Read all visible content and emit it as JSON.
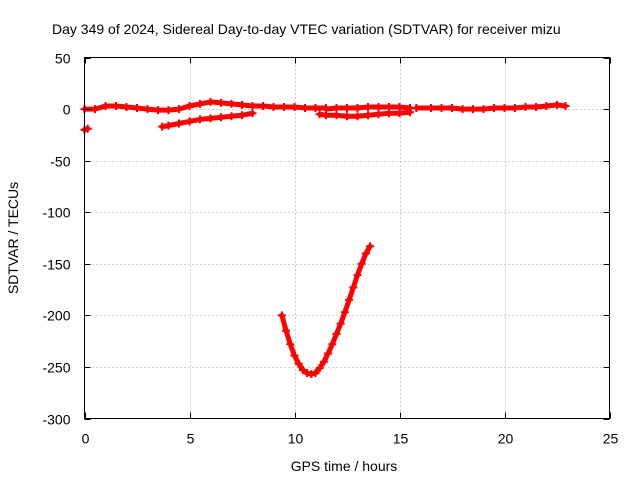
{
  "chart_data": {
    "type": "scatter",
    "title": "Day 349 of 2024, Sidereal Day-to-day VTEC variation (SDTVAR) for receiver mizu",
    "xlabel": "GPS time / hours",
    "ylabel": "SDTVAR / TECUs",
    "xlim": [
      0,
      25
    ],
    "ylim": [
      -300,
      50
    ],
    "xticks": [
      0,
      5,
      10,
      15,
      20,
      25
    ],
    "yticks": [
      50,
      0,
      -50,
      -100,
      -150,
      -200,
      -250,
      -300
    ],
    "grid": true,
    "marker": "plus",
    "color": "#ff0000",
    "series": [
      {
        "name": "arc-0",
        "x": [
          0.0,
          0.15
        ],
        "y": [
          -20,
          -19
        ]
      },
      {
        "name": "arc-1",
        "x": [
          0.0,
          0.5,
          1.0,
          1.5,
          2.0,
          2.5,
          3.0,
          3.5,
          4.0,
          4.5,
          5.0,
          5.5,
          6.0,
          6.5,
          7.0,
          7.5,
          8.0,
          8.5,
          9.0,
          9.5,
          10.0,
          10.5,
          11.0,
          11.5
        ],
        "y": [
          0,
          0,
          3,
          3,
          2,
          1,
          0,
          -1,
          -1,
          0,
          3,
          5,
          7,
          6,
          5,
          4,
          3,
          3,
          2,
          2,
          2,
          1,
          1,
          1
        ]
      },
      {
        "name": "arc-2",
        "x": [
          3.7,
          4.0,
          4.5,
          5.0,
          5.5,
          6.0,
          6.5,
          7.0,
          7.5,
          8.0
        ],
        "y": [
          -17,
          -16,
          -14,
          -12,
          -10,
          -9,
          -8,
          -7,
          -6,
          -4
        ]
      },
      {
        "name": "arc-3",
        "x": [
          11.2,
          11.5,
          12.0,
          12.5,
          13.0,
          13.5,
          14.0,
          14.5,
          15.0,
          15.5
        ],
        "y": [
          -5,
          -6,
          -6,
          -7,
          -7,
          -6,
          -5,
          -4,
          -4,
          -3
        ]
      },
      {
        "name": "arc-4",
        "x": [
          11.5,
          12.0,
          12.5,
          13.0,
          13.5,
          14.0,
          14.5,
          15.0,
          15.5
        ],
        "y": [
          0,
          1,
          1,
          1,
          2,
          2,
          2,
          2,
          1
        ]
      },
      {
        "name": "arc-5",
        "x": [
          15.8,
          16.5,
          17.0,
          17.5,
          18.0,
          18.5,
          19.0,
          19.5,
          20.0,
          20.5,
          21.0,
          21.5,
          22.0,
          22.5,
          22.9
        ],
        "y": [
          1,
          1,
          1,
          1,
          0,
          0,
          0,
          1,
          1,
          1,
          2,
          2,
          3,
          4,
          3
        ]
      },
      {
        "name": "arc-6",
        "x": [
          9.4,
          9.6,
          9.8,
          10.0,
          10.2,
          10.4,
          10.6,
          10.8,
          11.0,
          11.2,
          11.4,
          11.6,
          11.8,
          12.0,
          12.2,
          12.4,
          12.6,
          12.8,
          13.0,
          13.2,
          13.4,
          13.6
        ],
        "y": [
          -200,
          -215,
          -228,
          -239,
          -247,
          -253,
          -256,
          -257,
          -256,
          -251,
          -245,
          -237,
          -228,
          -218,
          -208,
          -197,
          -185,
          -173,
          -161,
          -150,
          -140,
          -133
        ]
      }
    ]
  }
}
